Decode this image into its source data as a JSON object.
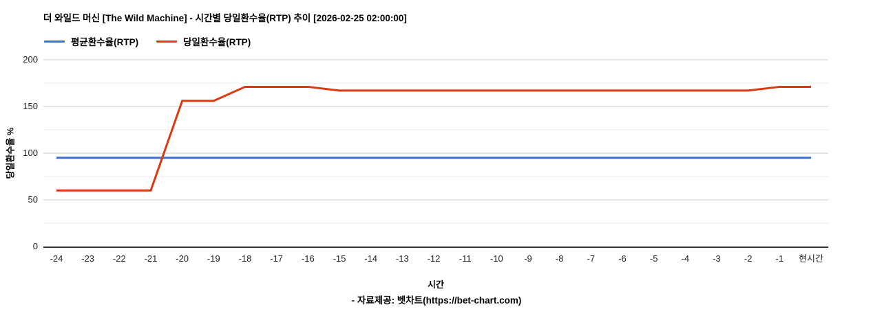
{
  "title": "더 와일드 머신 [The Wild Machine] - 시간별 당일환수율(RTP) 추이 [2026-02-25 02:00:00]",
  "footer": "- 자료제공: 벳차트(https://bet-chart.com)",
  "colors": {
    "average_line": "#3b6fd4",
    "daily_line": "#dc3912",
    "major_gridline": "#cccccc",
    "minor_gridline": "#ebebeb",
    "axis_baseline": "#333333",
    "tick_text": "#222222",
    "background": "#ffffff"
  },
  "chart_data": {
    "type": "line",
    "title": "더 와일드 머신 [The Wild Machine] - 시간별 당일환수율(RTP) 추이 [2026-02-25 02:00:00]",
    "x_label": "시간",
    "y_label": "당일환수율 %",
    "legend_position": "top",
    "grid": true,
    "ylim": [
      0,
      200
    ],
    "y_ticks": [
      0,
      50,
      100,
      150,
      200
    ],
    "y_minor_ticks": [
      25,
      75,
      125,
      175
    ],
    "categories": [
      "-24",
      "-23",
      "-22",
      "-21",
      "-20",
      "-19",
      "-18",
      "-17",
      "-16",
      "-15",
      "-14",
      "-13",
      "-12",
      "-11",
      "-10",
      "-9",
      "-8",
      "-7",
      "-6",
      "-5",
      "-4",
      "-3",
      "-2",
      "-1",
      "현시간"
    ],
    "series": [
      {
        "name": "평균환수율(RTP)",
        "color": "#3b6fd4",
        "values": [
          95,
          95,
          95,
          95,
          95,
          95,
          95,
          95,
          95,
          95,
          95,
          95,
          95,
          95,
          95,
          95,
          95,
          95,
          95,
          95,
          95,
          95,
          95,
          95,
          95
        ]
      },
      {
        "name": "당일환수율(RTP)",
        "color": "#dc3912",
        "values": [
          60,
          60,
          60,
          60,
          156,
          156,
          171,
          171,
          171,
          167,
          167,
          167,
          167,
          167,
          167,
          167,
          167,
          167,
          167,
          167,
          167,
          167,
          167,
          171,
          171
        ]
      }
    ]
  }
}
